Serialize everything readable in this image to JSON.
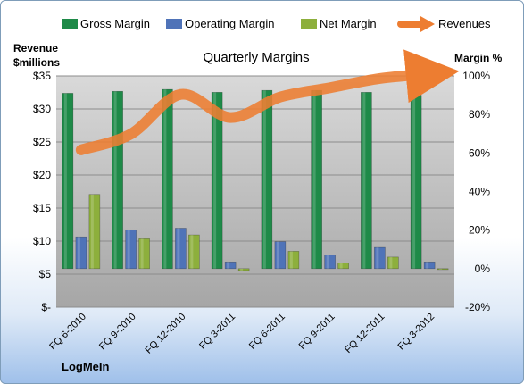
{
  "chart_data": {
    "type": "bar",
    "title": "Quarterly Margins",
    "left_axis_label_line1": "Revenue",
    "left_axis_label_line2": "$millions",
    "right_axis_label": "Margin %",
    "footer_text": "LogMeIn",
    "categories": [
      "FQ 6-2010",
      "FQ 9-2010",
      "FQ 12-2010",
      "FQ 3-2011",
      "FQ 6-2011",
      "FQ 9-2011",
      "FQ 12-2011",
      "FQ 3-2012"
    ],
    "left_ticks": [
      "$-",
      "$5",
      "$10",
      "$15",
      "$20",
      "$25",
      "$30",
      "$35"
    ],
    "right_ticks": [
      "-20%",
      "0%",
      "20%",
      "40%",
      "60%",
      "80%",
      "100%"
    ],
    "ylim_revenue": [
      0,
      35
    ],
    "ylim_margin": [
      -20,
      100
    ],
    "legend_position": "top",
    "grid": true,
    "series": [
      {
        "name": "Gross Margin",
        "axis": "right",
        "kind": "bar",
        "color": "#1e8a48",
        "values": [
          91,
          92,
          93,
          91.5,
          92.5,
          92.5,
          91.5,
          90
        ]
      },
      {
        "name": "Operating Margin",
        "axis": "right",
        "kind": "bar",
        "color": "#4f73b8",
        "values": [
          16.5,
          20,
          21,
          3.5,
          14,
          7,
          11,
          3.5
        ]
      },
      {
        "name": "Net Margin",
        "axis": "right",
        "kind": "bar",
        "color": "#8daf3c",
        "values": [
          38.5,
          15.5,
          17.5,
          -1,
          9,
          3,
          6,
          -0.5
        ]
      },
      {
        "name": "Revenues",
        "axis": "left",
        "kind": "line",
        "color": "#ed7d31",
        "values": [
          23.8,
          26.2,
          32.2,
          28.7,
          31.8,
          33.2,
          34.6,
          35.3
        ]
      }
    ]
  }
}
